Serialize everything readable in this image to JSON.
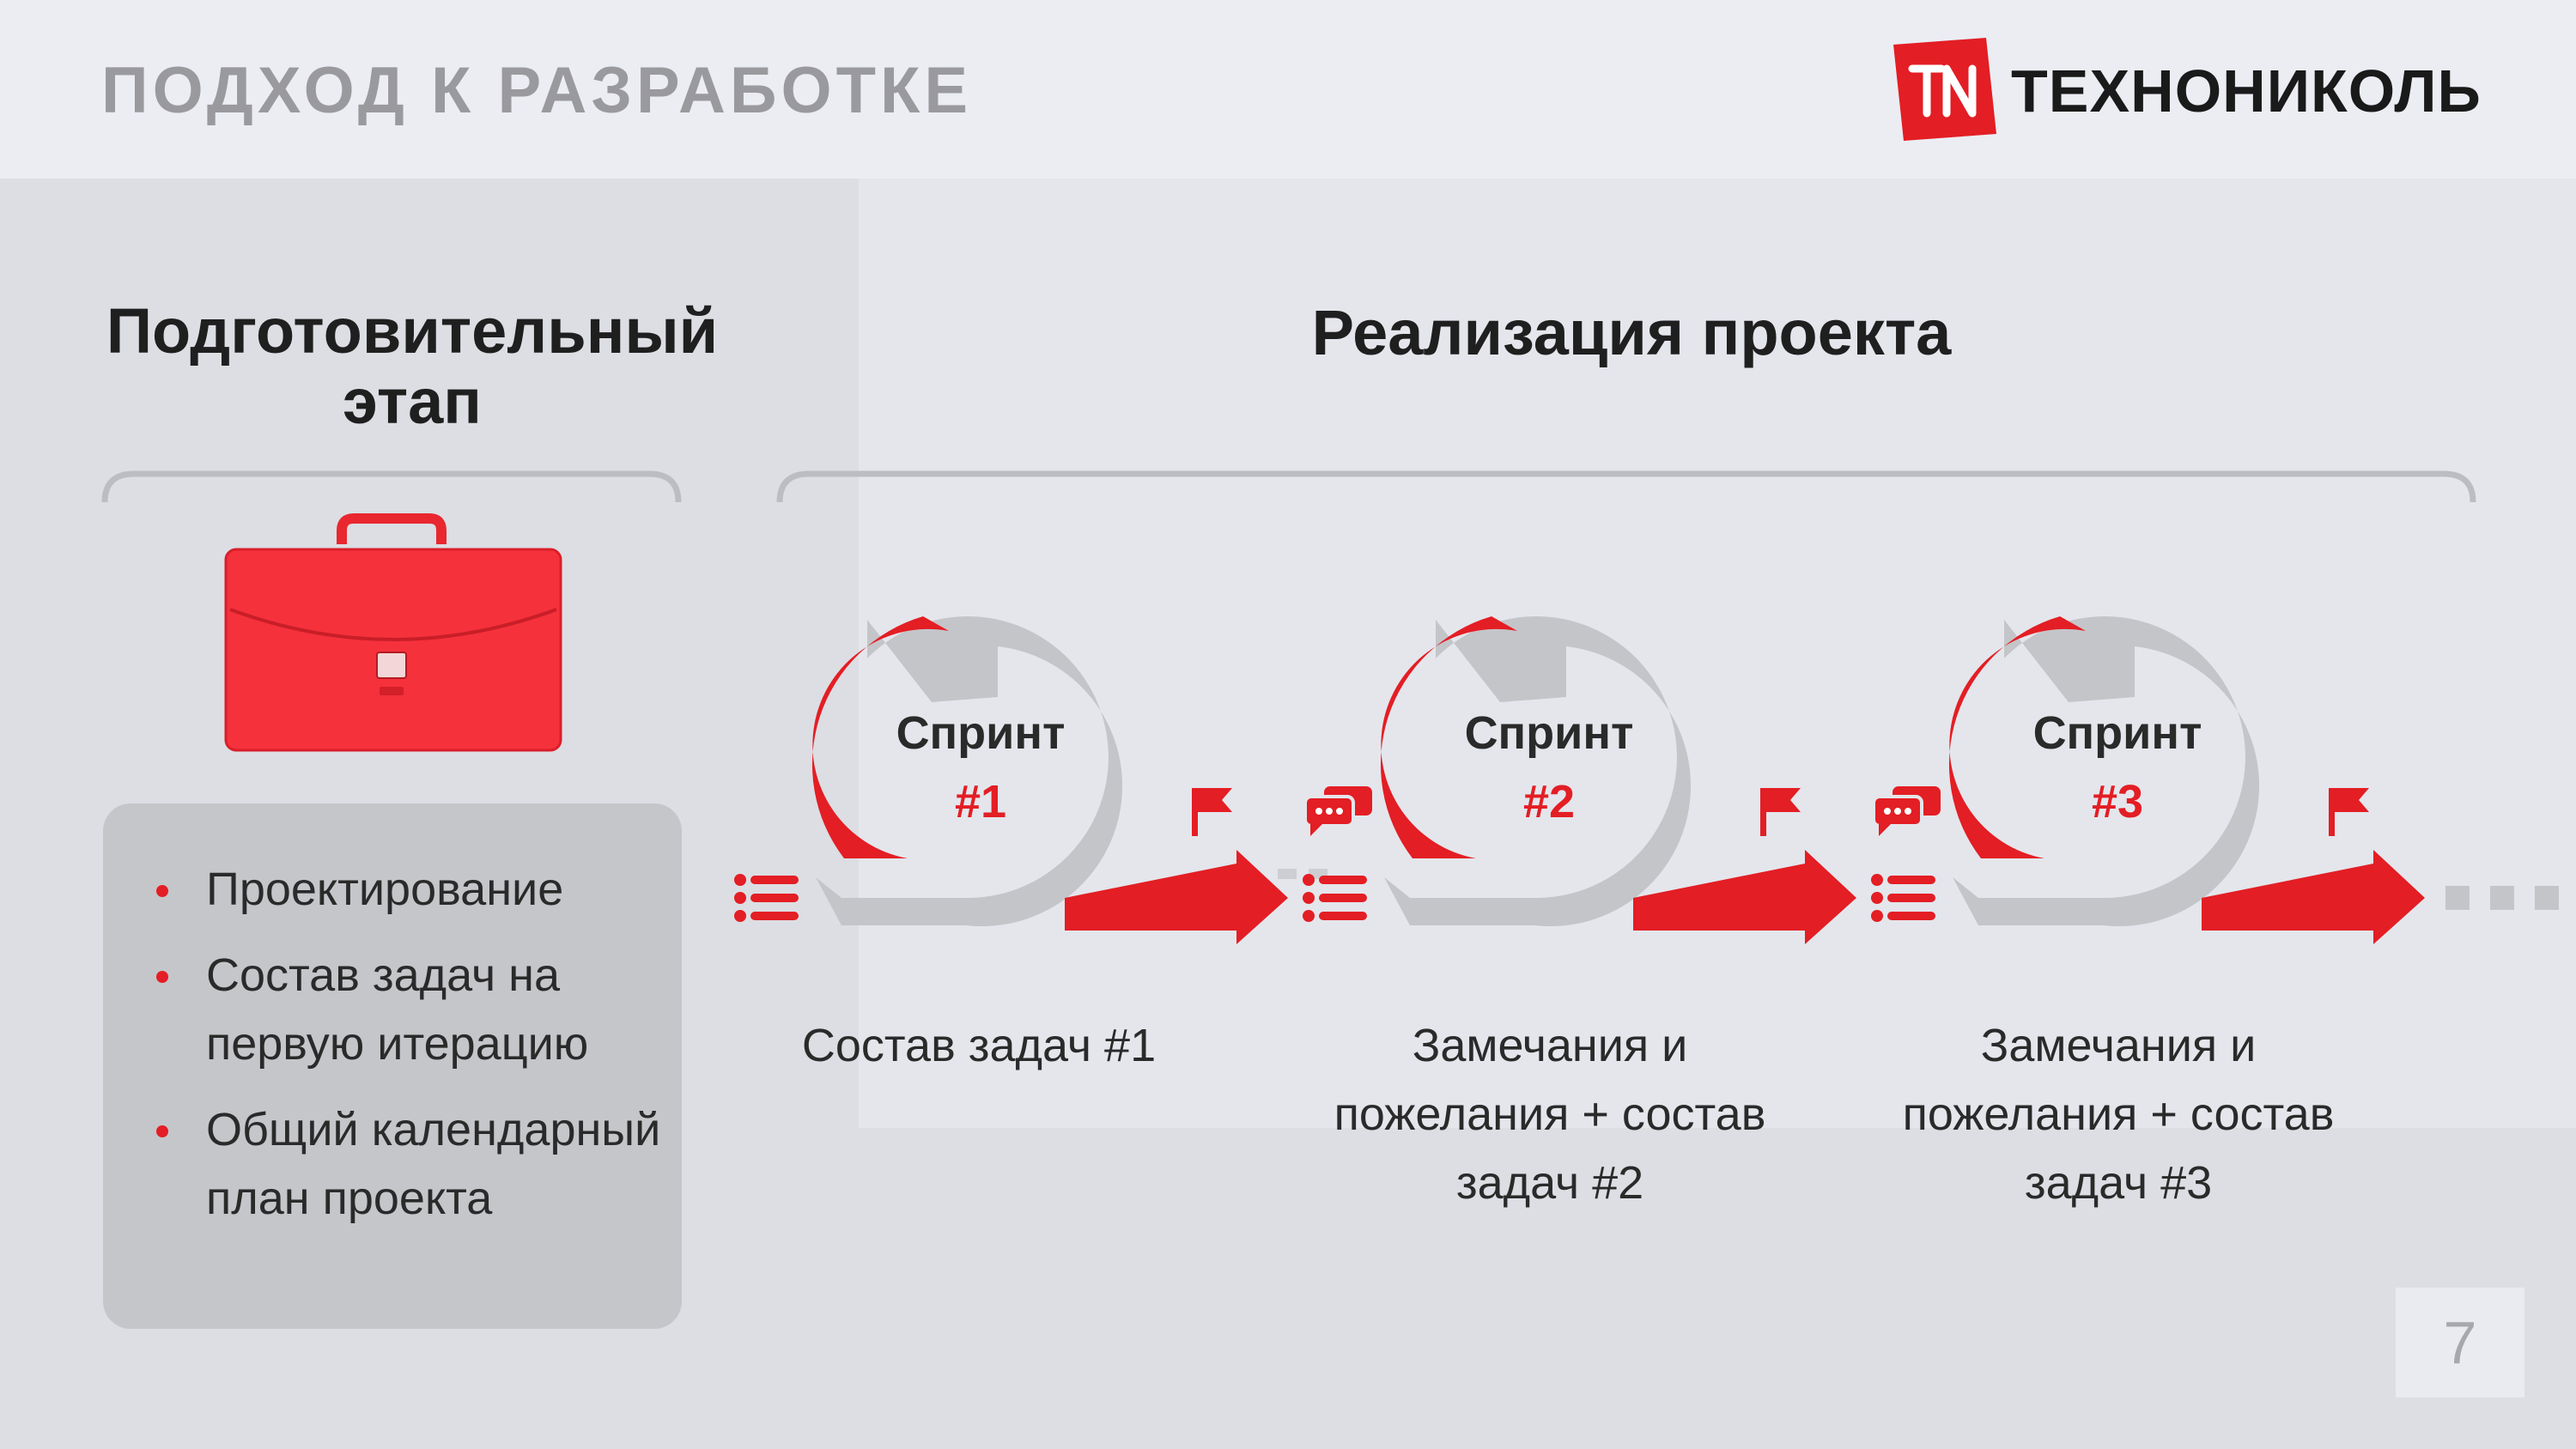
{
  "header": {
    "title": "ПОДХОД К РАЗРАБОТКЕ"
  },
  "logo": {
    "text": "ТЕХНОНИКОЛЬ"
  },
  "prep": {
    "title": "Подготовительный этап",
    "items": [
      "Проектирование",
      "Состав задач на первую итерацию",
      "Общий календарный план проекта"
    ]
  },
  "impl": {
    "title": "Реализация проекта"
  },
  "sprints": [
    {
      "name": "Спринт",
      "number": "#1",
      "caption": "Состав задач #1"
    },
    {
      "name": "Спринт",
      "number": "#2",
      "caption": "Замечания и пожелания + состав задач #2"
    },
    {
      "name": "Спринт",
      "number": "#3",
      "caption": "Замечания и пожелания + состав задач #3"
    }
  ],
  "page": {
    "number": "7"
  },
  "colors": {
    "accent": "#e31e24",
    "gray_arrow": "#c4c5c9",
    "briefcase": "#f5313c"
  }
}
